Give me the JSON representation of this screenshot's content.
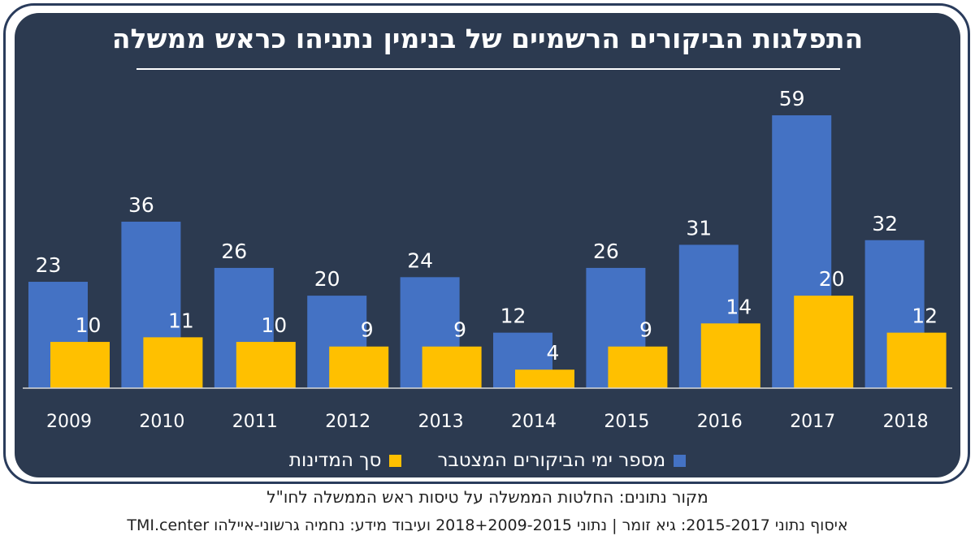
{
  "chart_data": {
    "type": "bar",
    "title": "התפלגות הביקורים הרשמיים של בנימין נתניהו כראש ממשלה",
    "categories": [
      "2009",
      "2010",
      "2011",
      "2012",
      "2013",
      "2014",
      "2015",
      "2016",
      "2017",
      "2018"
    ],
    "series": [
      {
        "name": "מספר ימי הביקורים המצטבר",
        "color": "#4472c4",
        "values": [
          23,
          36,
          26,
          20,
          24,
          12,
          26,
          31,
          59,
          32
        ]
      },
      {
        "name": "סך המדינות",
        "color": "#ffc000",
        "values": [
          10,
          11,
          10,
          9,
          9,
          4,
          9,
          14,
          20,
          12
        ]
      }
    ],
    "xlabel": "",
    "ylabel": "",
    "ylim": [
      0,
      59
    ],
    "grid": false,
    "legend_position": "bottom"
  },
  "footer": {
    "source": "מקור נתונים: החלטות הממשלה על טיסות ראש הממשלה לחו\"ל",
    "credit": "איסוף נתוני 2015-2017: גיא זומר | נתוני 2018+2009-2015 ועיבוד מידע: נחמיה גרשוני-איילהו TMI.center"
  },
  "colors": {
    "panel": "#2c3a50",
    "frame": "#2a3c5c",
    "axis": "#d9d9d9",
    "text": "#ffffff"
  }
}
